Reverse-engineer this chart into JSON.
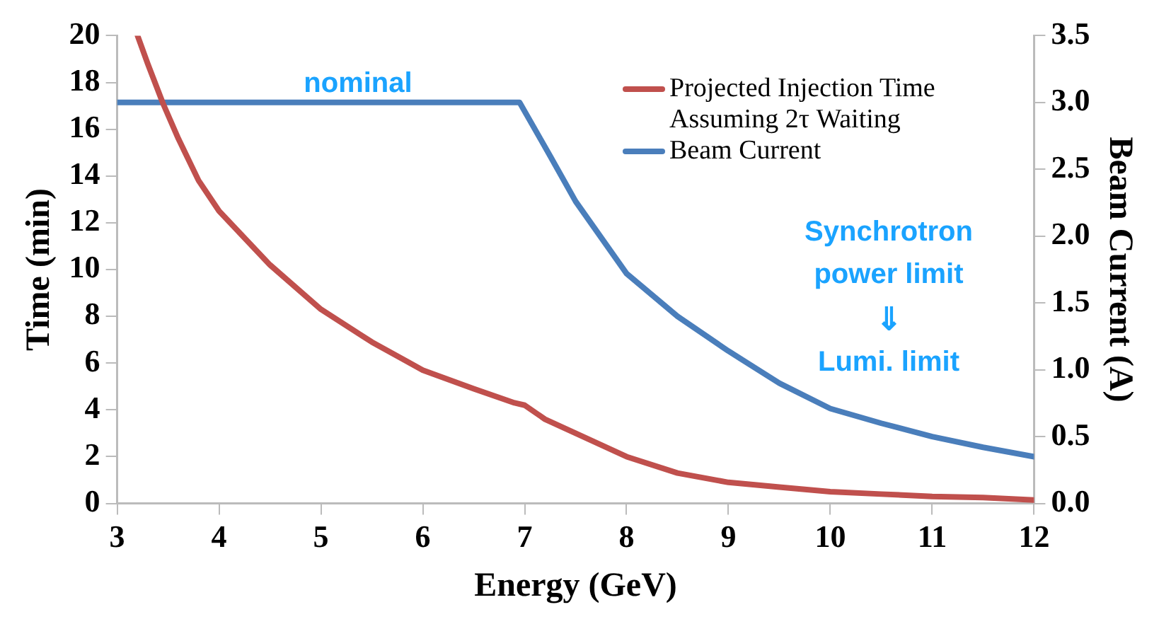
{
  "chart_data": {
    "type": "line",
    "xlabel": "Energy (GeV)",
    "ylabel": "Time (min)",
    "y2label": "Beam Current (A)",
    "xlim": [
      3,
      12
    ],
    "xticks": [
      3,
      4,
      5,
      6,
      7,
      8,
      9,
      10,
      11,
      12
    ],
    "ylim": [
      0,
      20
    ],
    "yticks": [
      0,
      2,
      4,
      6,
      8,
      10,
      12,
      14,
      16,
      18,
      20
    ],
    "y2lim": [
      0,
      3.5
    ],
    "y2ticks": [
      {
        "value": 0,
        "label": "0.0"
      },
      {
        "value": 0.5,
        "label": "0.5"
      },
      {
        "value": 1,
        "label": "1.0"
      },
      {
        "value": 1.5,
        "label": "1.5"
      },
      {
        "value": 2,
        "label": "2.0"
      },
      {
        "value": 2.5,
        "label": "2.5"
      },
      {
        "value": 3,
        "label": "3.0"
      },
      {
        "value": 3.5,
        "label": "3.5"
      }
    ],
    "grid": false,
    "legend": "top right",
    "marker": "none",
    "line_style": "solid",
    "series": [
      {
        "name": "Projected Injection Time Assuming 2τ Waiting",
        "color": "#c0504d",
        "x": [
          3.2,
          3.3,
          3.45,
          3.6,
          3.8,
          4,
          4.5,
          5,
          5.5,
          6,
          6.5,
          6.9,
          7,
          7.2,
          7.5,
          8,
          8.5,
          9,
          9.5,
          10,
          10.5,
          11,
          11.5,
          12
        ],
        "values": [
          20,
          18.8,
          17.1,
          15.6,
          13.8,
          12.5,
          10.2,
          8.3,
          6.9,
          5.7,
          4.9,
          4.3,
          4.2,
          3.6,
          3,
          2,
          1.3,
          0.9,
          0.7,
          0.5,
          0.4,
          0.3,
          0.25,
          0.15
        ]
      },
      {
        "name": "Beam Current",
        "color": "#4a7ebb",
        "axis": "y2",
        "x": [
          3,
          4,
          5,
          6,
          6.95,
          7.25,
          7.5,
          8,
          8.5,
          9,
          9.5,
          10,
          10.5,
          11,
          11.5,
          12
        ],
        "values": [
          3,
          3,
          3,
          3,
          3,
          2.6,
          2.26,
          1.72,
          1.4,
          1.14,
          0.9,
          0.71,
          0.6,
          0.5,
          0.42,
          0.35
        ]
      }
    ],
    "annotations": [
      "nominal",
      "Synchrotron",
      "power limit",
      "⇓",
      "Lumi. limit"
    ]
  }
}
